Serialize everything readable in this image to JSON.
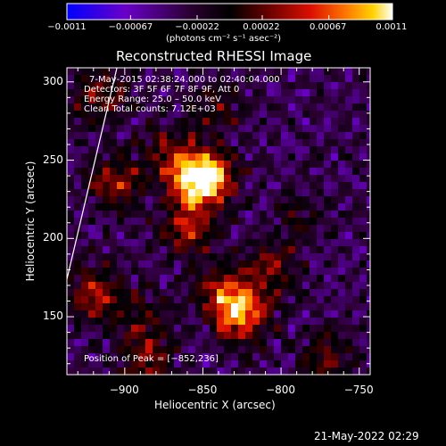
{
  "chart_data": {
    "type": "heatmap",
    "title": "Reconstructed RHESSI Image",
    "xlabel": "Heliocentric X (arcsec)",
    "ylabel": "Heliocentric Y (arcsec)",
    "xlim": [
      -937,
      -743
    ],
    "ylim": [
      113,
      309
    ],
    "x_ticks": [
      -900,
      -850,
      -800,
      -750
    ],
    "y_ticks": [
      150,
      200,
      250,
      300
    ],
    "x_tick_labels": [
      "−900",
      "−850",
      "−800",
      "−750"
    ],
    "y_tick_labels": [
      "150",
      "200",
      "250",
      "300"
    ],
    "colorbar": {
      "range": [
        -0.0011,
        0.0011
      ],
      "tick_labels": [
        "−0.0011",
        "−0.00067",
        "−0.00022",
        "0.00022",
        "0.00067",
        "0.0011"
      ],
      "unit_label": "(photons cm⁻² s⁻¹ asec⁻²)"
    },
    "colorscale": [
      "#0000ff",
      "#6a00c8",
      "#2a0030",
      "#000000",
      "#6a0000",
      "#dc1000",
      "#ff7a00",
      "#ffd200",
      "#ffffff"
    ],
    "info_lines": [
      "7‑May‑2015 02:38:24.000 to 02:40:04.000",
      "Detectors: 3F 5F 6F 7F 8F 9F, Att 0",
      "Energy Range: 25.0 – 50.0 keV",
      "Clean     Total counts: 7.12E+03"
    ],
    "peak_label": "Position of Peak = [−852,236]",
    "peak": {
      "x": -852,
      "y": 236
    },
    "sources": [
      {
        "x": -855,
        "y": 235,
        "value": 0.0011
      },
      {
        "x": -845,
        "y": 240,
        "value": 0.0009
      },
      {
        "x": -870,
        "y": 255,
        "value": 0.0006
      },
      {
        "x": -860,
        "y": 205,
        "value": 0.0007
      },
      {
        "x": -825,
        "y": 150,
        "value": 0.001
      },
      {
        "x": -835,
        "y": 165,
        "value": 0.0008
      },
      {
        "x": -805,
        "y": 180,
        "value": 0.0006
      },
      {
        "x": -920,
        "y": 165,
        "value": 0.0007
      },
      {
        "x": -905,
        "y": 235,
        "value": 0.0007
      },
      {
        "x": -915,
        "y": 290,
        "value": 0.0006
      },
      {
        "x": -890,
        "y": 150,
        "value": 0.0005
      },
      {
        "x": -770,
        "y": 125,
        "value": 0.0005
      },
      {
        "x": -885,
        "y": 120,
        "value": 0.0006
      },
      {
        "x": -840,
        "y": 285,
        "value": 0.0004
      },
      {
        "x": -790,
        "y": 215,
        "value": 0.0003
      }
    ],
    "limb_line": {
      "x": [
        -937,
        -905
      ],
      "y": [
        174,
        309
      ]
    }
  },
  "footer": {
    "timestamp": "21‑May‑2022 02:29"
  }
}
